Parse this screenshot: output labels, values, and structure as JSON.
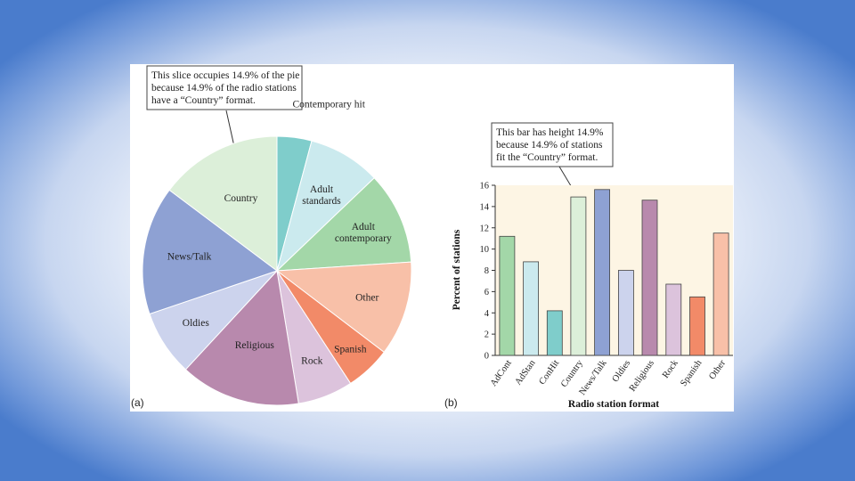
{
  "chart_data": [
    {
      "type": "pie",
      "panel": "(a)",
      "annotation": [
        "This slice occupies 14.9% of the pie",
        "because 14.9% of the radio stations",
        "have a “Country” format."
      ],
      "slices": [
        {
          "label": "Contemporary hit",
          "value": 4.2,
          "color": "#7fcdcb"
        },
        {
          "label": "Adult standards",
          "value": 8.8,
          "color": "#cbeaee"
        },
        {
          "label": "Adult contemporary",
          "value": 11.2,
          "color": "#a3d7a8"
        },
        {
          "label": "Other",
          "value": 11.5,
          "color": "#f8c0a8"
        },
        {
          "label": "Spanish",
          "value": 5.5,
          "color": "#f28a68"
        },
        {
          "label": "Rock",
          "value": 6.7,
          "color": "#dcc3dc"
        },
        {
          "label": "Religious",
          "value": 14.6,
          "color": "#b889ad"
        },
        {
          "label": "Oldies",
          "value": 8.0,
          "color": "#ccd3ed"
        },
        {
          "label": "News/Talk",
          "value": 15.6,
          "color": "#8ea1d3"
        },
        {
          "label": "Country",
          "value": 14.9,
          "color": "#dcefd9"
        }
      ]
    },
    {
      "type": "bar",
      "panel": "(b)",
      "annotation": [
        "This bar has height 14.9%",
        "because 14.9% of stations",
        "fit the “Country” format."
      ],
      "categories": [
        "AdCont",
        "AdStan",
        "ConHit",
        "Country",
        "News/Talk",
        "Oldies",
        "Religious",
        "Rock",
        "Spanish",
        "Other"
      ],
      "values": [
        11.2,
        8.8,
        4.2,
        14.9,
        15.6,
        8.0,
        14.6,
        6.7,
        5.5,
        11.5
      ],
      "colors": [
        "#a3d7a8",
        "#cbeaee",
        "#7fcdcb",
        "#dcefd9",
        "#8ea1d3",
        "#ccd3ed",
        "#b889ad",
        "#dcc3dc",
        "#f28a68",
        "#f8c0a8"
      ],
      "xlabel": "Radio station format",
      "ylabel": "Percent of stations",
      "ylim": [
        0,
        16
      ],
      "yticks": [
        0,
        2,
        4,
        6,
        8,
        10,
        12,
        14,
        16
      ],
      "plot_background": "#fdf5e4"
    }
  ]
}
